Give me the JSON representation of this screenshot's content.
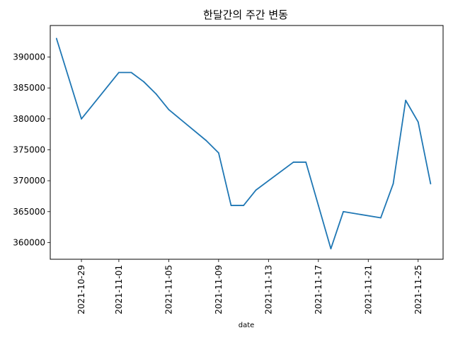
{
  "chart_data": {
    "type": "line",
    "title": "한달간의 주간 변동",
    "xlabel": "date",
    "ylabel": "",
    "xlim": [
      "2021-10-26T12:00",
      "2021-11-27T00:00"
    ],
    "ylim": [
      357300,
      395100
    ],
    "yticks": [
      360000,
      365000,
      370000,
      375000,
      380000,
      385000,
      390000
    ],
    "xticks": [
      "2021-10-29",
      "2021-11-01",
      "2021-11-05",
      "2021-11-09",
      "2021-11-13",
      "2021-11-17",
      "2021-11-21",
      "2021-11-25"
    ],
    "grid": false,
    "color": "#1f77b4",
    "series": [
      {
        "x": [
          "2021-10-27",
          "2021-10-29",
          "2021-11-01",
          "2021-11-02",
          "2021-11-03",
          "2021-11-04",
          "2021-11-05",
          "2021-11-08",
          "2021-11-09",
          "2021-11-10",
          "2021-11-11",
          "2021-11-12",
          "2021-11-15",
          "2021-11-16",
          "2021-11-17",
          "2021-11-18",
          "2021-11-19",
          "2021-11-22",
          "2021-11-23",
          "2021-11-24",
          "2021-11-25",
          "2021-11-26"
        ],
        "values": [
          393000,
          380000,
          387500,
          387500,
          386000,
          384000,
          381500,
          376500,
          374500,
          366000,
          366000,
          368500,
          373000,
          373000,
          366000,
          359000,
          365000,
          364000,
          369500,
          383000,
          379500,
          369500
        ]
      }
    ]
  }
}
